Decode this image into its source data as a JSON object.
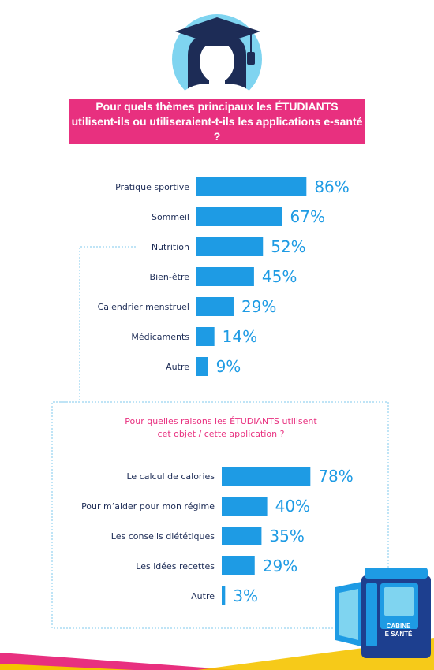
{
  "header": {
    "question_line1": "Pour quels thèmes principaux les ÉTUDIANTS",
    "question_line2": "utilisent-ils ou utiliseraient-t-ils les applications e-santé ?"
  },
  "chart_data": [
    {
      "type": "bar",
      "orientation": "horizontal",
      "categories": [
        "Pratique sportive",
        "Sommeil",
        "Nutrition",
        "Bien-être",
        "Calendrier menstruel",
        "Médicaments",
        "Autre"
      ],
      "values": [
        86,
        67,
        52,
        45,
        29,
        14,
        9
      ],
      "value_labels": [
        "86%",
        "67%",
        "52%",
        "45%",
        "29%",
        "14%",
        "9%"
      ],
      "unit": "%",
      "xlim": [
        0,
        100
      ],
      "bar_color": "#1e9be4"
    },
    {
      "type": "bar",
      "orientation": "horizontal",
      "title_line1": "Pour quelles raisons les ÉTUDIANTS utilisent",
      "title_line2": "cet objet / cette application ?",
      "categories": [
        "Le calcul de calories",
        "Pour m’aider pour mon régime",
        "Les conseils diététiques",
        "Les idées recettes",
        "Autre"
      ],
      "values": [
        78,
        40,
        35,
        29,
        3
      ],
      "value_labels": [
        "78%",
        "40%",
        "35%",
        "29%",
        "3%"
      ],
      "unit": "%",
      "xlim": [
        0,
        100
      ],
      "bar_color": "#1e9be4"
    }
  ],
  "brand": {
    "kiosk_line1": "CABINE",
    "kiosk_line2": "E SANTÉ"
  },
  "colors": {
    "accent": "#e8307f",
    "bar": "#1e9be4",
    "text": "#1d2c56",
    "avatar_bg": "#7fd4f0"
  }
}
